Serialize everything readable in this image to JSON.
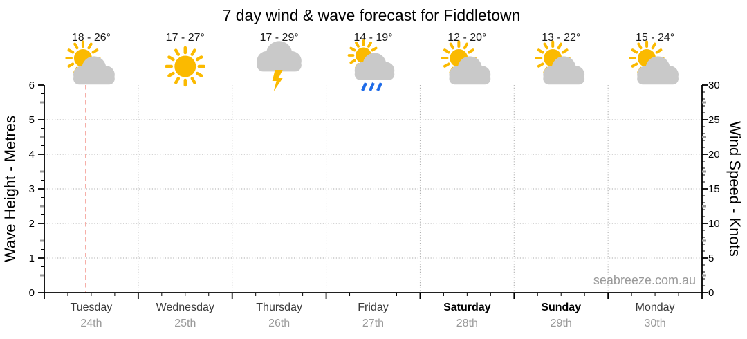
{
  "title": "7 day wind & wave forecast for Fiddletown",
  "watermark": "seabreeze.com.au",
  "chart_data": {
    "type": "table",
    "title": "7 day wind & wave forecast for Fiddletown",
    "left_axis": {
      "label": "Wave Height - Metres",
      "min": 0,
      "max": 6,
      "major_step": 1,
      "minor_step": 0.25,
      "gridlines": [
        1,
        2,
        3,
        4,
        5
      ]
    },
    "right_axis": {
      "label": "Wind Speed - Knots",
      "min": 0,
      "max": 30,
      "major_step": 5,
      "minor_step": 1
    },
    "x_axis": {
      "days_shown": 7,
      "minor_ticks_per_day": 4,
      "day_boundary_gridlines": true
    },
    "series": [],
    "days": [
      {
        "name": "Tuesday",
        "date": "24th",
        "temp_range": "18 - 26°",
        "temp_min": 18,
        "temp_max": 26,
        "icon": "sun-behind-cloud",
        "weekend": false
      },
      {
        "name": "Wednesday",
        "date": "25th",
        "temp_range": "17 - 27°",
        "temp_min": 17,
        "temp_max": 27,
        "icon": "sunny",
        "weekend": false
      },
      {
        "name": "Thursday",
        "date": "26th",
        "temp_range": "17 - 29°",
        "temp_min": 17,
        "temp_max": 29,
        "icon": "thunderstorm",
        "weekend": false
      },
      {
        "name": "Friday",
        "date": "27th",
        "temp_range": "14 - 19°",
        "temp_min": 14,
        "temp_max": 19,
        "icon": "sun-cloud-rain",
        "weekend": false
      },
      {
        "name": "Saturday",
        "date": "28th",
        "temp_range": "12 - 20°",
        "temp_min": 12,
        "temp_max": 20,
        "icon": "sun-behind-cloud",
        "weekend": true
      },
      {
        "name": "Sunday",
        "date": "29th",
        "temp_range": "13 - 22°",
        "temp_min": 13,
        "temp_max": 22,
        "icon": "sun-behind-cloud",
        "weekend": true
      },
      {
        "name": "Monday",
        "date": "30th",
        "temp_range": "15 - 24°",
        "temp_min": 15,
        "temp_max": 24,
        "icon": "sun-behind-cloud",
        "weekend": false
      }
    ],
    "current_time_marker": {
      "day_index": 0,
      "fraction_of_day": 0.44
    }
  },
  "colors": {
    "background": "#FFFFFF",
    "sun": "#FBBA00",
    "cloud": "#C9C9C9",
    "rain": "#1E6BE8",
    "lightning": "#FBBA00",
    "grid": "#AAAAAA",
    "axis": "#000000",
    "half_tick": "#999999",
    "time_marker": "#F5A9A2",
    "title_text": "#000000",
    "temp_label": "#1A1A1A",
    "day_label": "#3A3A3A",
    "weekend_label": "#000000",
    "date_label": "#9A9A9A",
    "watermark": "#9A9A9A"
  }
}
